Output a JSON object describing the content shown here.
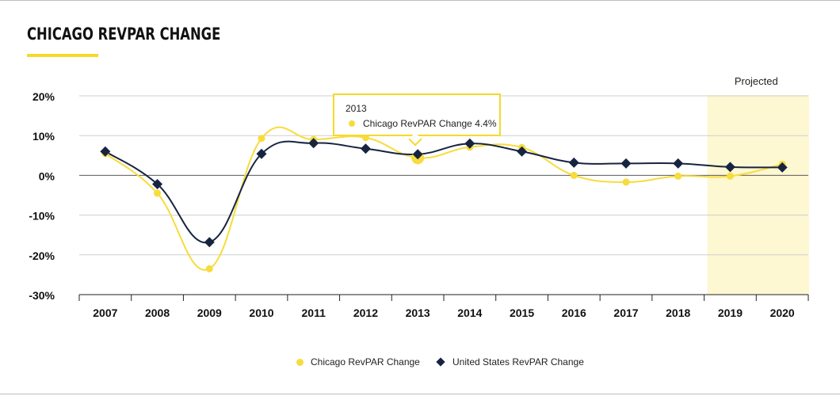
{
  "title": "CHICAGO REVPAR CHANGE",
  "colors": {
    "chicago": "#f7dc3c",
    "us": "#172441",
    "projected_band": "#fdf7d2",
    "grid": "#cfcfcf",
    "accent": "#f6d92a"
  },
  "projected_label": "Projected",
  "tooltip": {
    "year": "2013",
    "text": "Chicago RevPAR Change 4.4%"
  },
  "chart_data": {
    "type": "line",
    "title": "CHICAGO REVPAR CHANGE",
    "xlabel": "",
    "ylabel": "",
    "categories": [
      "2007",
      "2008",
      "2009",
      "2010",
      "2011",
      "2012",
      "2013",
      "2014",
      "2015",
      "2016",
      "2017",
      "2018",
      "2019",
      "2020"
    ],
    "y_ticks": [
      20,
      10,
      0,
      -10,
      -20,
      -30
    ],
    "y_tick_labels": [
      "20%",
      "10%",
      "0%",
      "-10%",
      "-20%",
      "-30%"
    ],
    "ylim": [
      -30,
      20
    ],
    "grid": true,
    "legend_position": "bottom-center",
    "projected_range": [
      "2019",
      "2020"
    ],
    "series": [
      {
        "name": "Chicago RevPAR Change",
        "marker": "circle",
        "values": [
          5.5,
          -4.5,
          -23.5,
          9.3,
          9.0,
          9.5,
          4.4,
          7.1,
          7.0,
          0.0,
          -1.7,
          -0.2,
          -0.2,
          2.8
        ]
      },
      {
        "name": "United States RevPAR Change",
        "marker": "diamond",
        "values": [
          6.0,
          -2.2,
          -16.8,
          5.4,
          8.1,
          6.7,
          5.3,
          8.0,
          6.0,
          3.2,
          3.0,
          3.0,
          2.1,
          2.0
        ]
      }
    ]
  }
}
